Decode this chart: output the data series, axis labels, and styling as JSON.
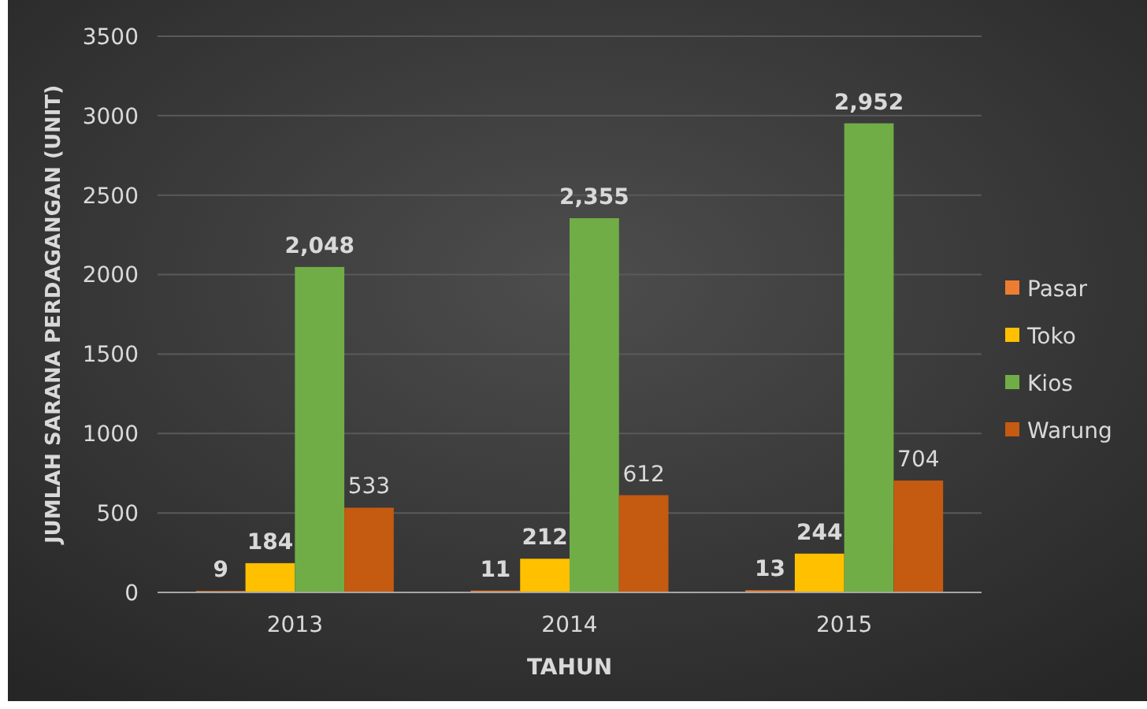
{
  "chart_data": {
    "type": "bar",
    "xlabel": "TAHUN",
    "ylabel": "JUMLAH SARANA PERDAGANGAN (UNIT)",
    "categories": [
      "2013",
      "2014",
      "2015"
    ],
    "series": [
      {
        "name": "Pasar",
        "color": "#ed7d31",
        "values": [
          9,
          11,
          13
        ],
        "value_labels": [
          "9",
          "11",
          "13"
        ]
      },
      {
        "name": "Toko",
        "color": "#ffc000",
        "values": [
          184,
          212,
          244
        ],
        "value_labels": [
          "184",
          "212",
          "244"
        ]
      },
      {
        "name": "Kios",
        "color": "#70ad47",
        "values": [
          2048,
          2355,
          2952
        ],
        "value_labels": [
          "2,048",
          "2,355",
          "2,952"
        ]
      },
      {
        "name": "Warung",
        "color": "#c55a11",
        "values": [
          533,
          612,
          704
        ],
        "value_labels": [
          "533",
          "612",
          "704"
        ]
      }
    ],
    "ylim": [
      0,
      3500
    ],
    "yticks": [
      0,
      500,
      1000,
      1500,
      2000,
      2500,
      3000,
      3500
    ],
    "grid": "y",
    "legend": "right"
  }
}
